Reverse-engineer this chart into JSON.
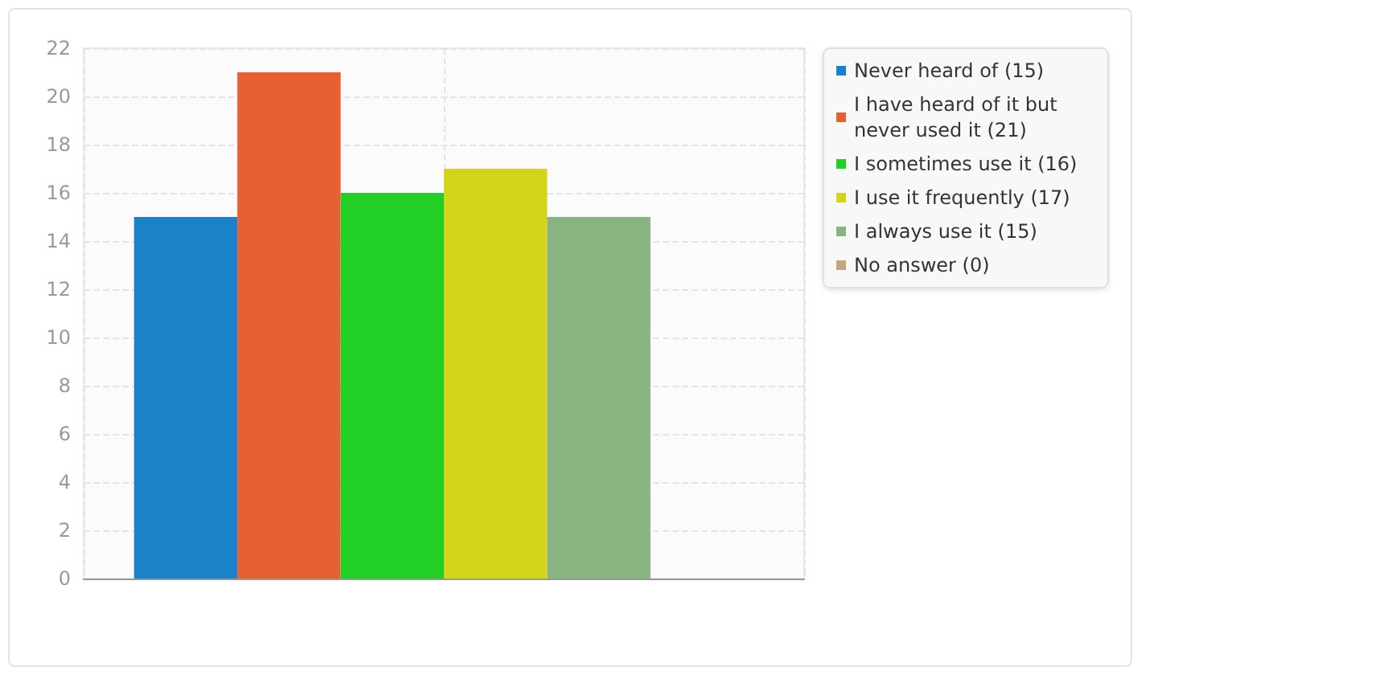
{
  "chart_data": {
    "type": "bar",
    "categories": [
      null
    ],
    "series": [
      {
        "name": "Never heard of (15)",
        "color": "#1a82c8",
        "values": [
          15
        ]
      },
      {
        "name": "I have heard of it but never used it (21)",
        "color": "#e85f33",
        "values": [
          21
        ]
      },
      {
        "name": "I sometimes use it (16)",
        "color": "#22cf26",
        "values": [
          16
        ]
      },
      {
        "name": "I use it frequently (17)",
        "color": "#d3d51d",
        "values": [
          17
        ]
      },
      {
        "name": "I always use it (15)",
        "color": "#8ab382",
        "values": [
          15
        ]
      },
      {
        "name": "No answer (0)",
        "color": "#c8a47e",
        "values": [
          0
        ]
      }
    ],
    "ylim": [
      0,
      22
    ],
    "yticks": [
      0,
      2,
      4,
      6,
      8,
      10,
      12,
      14,
      16,
      18,
      20,
      22
    ],
    "grid": true,
    "legend": "right"
  }
}
